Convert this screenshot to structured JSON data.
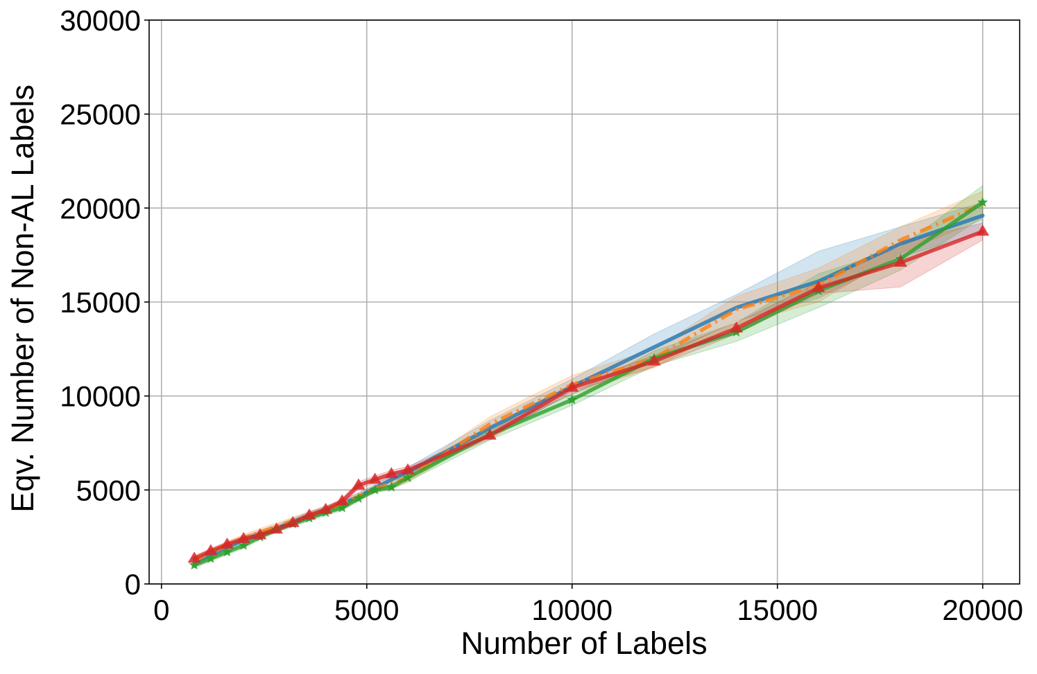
{
  "chart_data": {
    "type": "line",
    "title": "",
    "xlabel": "Number of Labels",
    "ylabel": "Eqv. Number of Non-AL Labels",
    "xlim": [
      -300,
      20900
    ],
    "ylim": [
      0,
      30000
    ],
    "xticks": [
      0,
      5000,
      10000,
      15000,
      20000
    ],
    "xtick_labels": [
      "0",
      "5000",
      "10000",
      "15000",
      "20000"
    ],
    "yticks": [
      0,
      5000,
      10000,
      15000,
      20000,
      25000,
      30000
    ],
    "ytick_labels": [
      "0",
      "5000",
      "10000",
      "15000",
      "20000",
      "25000",
      "30000"
    ],
    "grid": true,
    "legend": "none",
    "colors": {
      "blue": "#1f77b4",
      "orange": "#ff7f0e",
      "green": "#2ca02c",
      "red": "#d62728",
      "grid": "#b0b0b0"
    },
    "series": [
      {
        "color": "#1f77b4",
        "line_style": "solid",
        "marker": "none",
        "x": [
          800,
          1200,
          1600,
          2000,
          2400,
          2800,
          3200,
          3600,
          4000,
          4400,
          4800,
          5200,
          5600,
          6000,
          8000,
          10000,
          12000,
          14000,
          16000,
          18000,
          20000
        ],
        "y": [
          1150,
          1550,
          1950,
          2350,
          2650,
          2950,
          3300,
          3650,
          3950,
          4250,
          4650,
          5100,
          5550,
          5950,
          8300,
          10500,
          12600,
          14700,
          16100,
          18100,
          19600
        ],
        "lower": [
          950,
          1350,
          1750,
          2150,
          2450,
          2750,
          3100,
          3450,
          3750,
          4050,
          4450,
          4900,
          5300,
          5700,
          7900,
          10100,
          11900,
          14000,
          15200,
          17400,
          18700
        ],
        "upper": [
          1350,
          1750,
          2150,
          2550,
          2850,
          3150,
          3500,
          3850,
          4150,
          4450,
          4850,
          5300,
          5800,
          6200,
          8700,
          10900,
          13300,
          15400,
          17700,
          19000,
          20300
        ]
      },
      {
        "color": "#ff7f0e",
        "line_style": "dashdot",
        "marker": "none",
        "x": [
          800,
          1200,
          1600,
          2000,
          2400,
          2800,
          3200,
          3600,
          4000,
          4400,
          4800,
          5200,
          5600,
          6000,
          8000,
          10000,
          12000,
          14000,
          16000,
          18000,
          20000
        ],
        "y": [
          1250,
          1650,
          2050,
          2450,
          2750,
          3050,
          3350,
          3650,
          3950,
          4250,
          4650,
          5050,
          5350,
          5650,
          8500,
          10600,
          12000,
          14600,
          15900,
          18300,
          20200
        ],
        "lower": [
          1050,
          1450,
          1850,
          2250,
          2550,
          2850,
          3150,
          3450,
          3750,
          4050,
          4450,
          4850,
          5100,
          5400,
          8100,
          10100,
          11500,
          13800,
          15000,
          17600,
          19400
        ],
        "upper": [
          1450,
          1850,
          2250,
          2650,
          2950,
          3250,
          3550,
          3850,
          4150,
          4450,
          4850,
          5250,
          5600,
          5900,
          8900,
          11100,
          12500,
          15300,
          16800,
          19000,
          20900
        ]
      },
      {
        "color": "#2ca02c",
        "line_style": "solid",
        "marker": "star",
        "x": [
          800,
          1200,
          1600,
          2000,
          2400,
          2800,
          3200,
          3600,
          4000,
          4400,
          4800,
          5200,
          5600,
          6000,
          8000,
          10000,
          12000,
          14000,
          16000,
          18000,
          20000
        ],
        "y": [
          1000,
          1350,
          1700,
          2050,
          2500,
          2900,
          3200,
          3500,
          3800,
          4050,
          4550,
          5000,
          5150,
          5650,
          7950,
          9800,
          12000,
          13400,
          15600,
          17300,
          20300
        ],
        "lower": [
          850,
          1200,
          1550,
          1900,
          2350,
          2750,
          3050,
          3350,
          3650,
          3900,
          4400,
          4850,
          5000,
          5450,
          7650,
          9500,
          11600,
          12900,
          14700,
          16700,
          19500
        ],
        "upper": [
          1150,
          1500,
          1850,
          2200,
          2650,
          3050,
          3350,
          3650,
          3950,
          4200,
          4700,
          5150,
          5300,
          5850,
          8250,
          10100,
          12400,
          13900,
          16500,
          17900,
          21200
        ]
      },
      {
        "color": "#d62728",
        "line_style": "solid",
        "marker": "triangle",
        "x": [
          800,
          1200,
          1600,
          2000,
          2400,
          2800,
          3200,
          3600,
          4000,
          4400,
          4800,
          5200,
          5600,
          6000,
          8000,
          10000,
          12000,
          14000,
          16000,
          18000,
          20000
        ],
        "y": [
          1350,
          1750,
          2100,
          2400,
          2600,
          2900,
          3250,
          3650,
          3950,
          4400,
          5250,
          5550,
          5850,
          6050,
          7900,
          10450,
          11850,
          13600,
          15750,
          17100,
          18750
        ],
        "lower": [
          1200,
          1600,
          1950,
          2250,
          2450,
          2750,
          3100,
          3500,
          3800,
          4250,
          5050,
          5350,
          5650,
          5850,
          7700,
          10250,
          11550,
          13300,
          15450,
          15800,
          18300
        ],
        "upper": [
          1500,
          1900,
          2250,
          2550,
          2750,
          3050,
          3400,
          3800,
          4100,
          4550,
          5450,
          5750,
          6050,
          6250,
          8100,
          10650,
          12150,
          13900,
          16050,
          18200,
          19200
        ]
      }
    ]
  }
}
